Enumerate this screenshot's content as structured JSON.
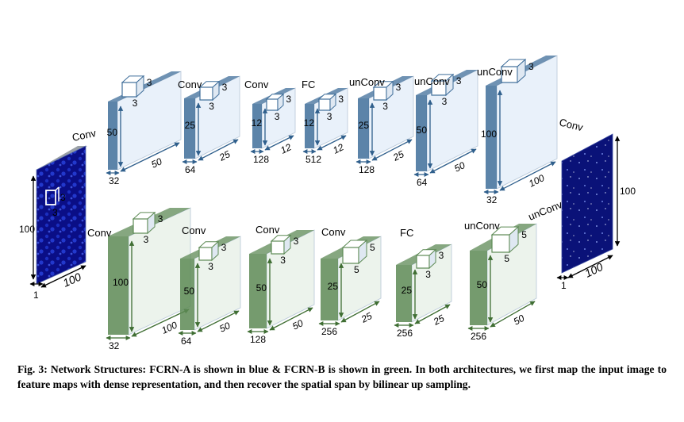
{
  "caption": "Fig. 3: Network Structures:  FCRN-A is shown in blue & FCRN-B is shown in green. In both architectures, we first map the input image to feature maps with dense representation, and then recover the spatial span by bilinear up sampling.",
  "colors": {
    "fcrn_a_face": "#e9f1fa",
    "fcrn_a_edge": "#3f6e9a",
    "fcrn_b_face": "#ecf3ec",
    "fcrn_b_edge": "#5d8a55",
    "input_image": "#0b0f8a",
    "output_image": "#0a1278"
  },
  "input": {
    "height_label": "100",
    "width_label": "100",
    "depth_label": "1",
    "kernel": [
      "3",
      "3"
    ]
  },
  "output": {
    "height_label": "100",
    "width_label": "100",
    "depth_label": "1"
  },
  "fcrn_a": [
    {
      "op": "Conv",
      "height": "50",
      "width": "50",
      "depth": "32",
      "kernel": [
        "3",
        "3"
      ]
    },
    {
      "op": "Conv",
      "height": "25",
      "width": "25",
      "depth": "64",
      "kernel": [
        "3",
        "3"
      ]
    },
    {
      "op": "Conv",
      "height": "12",
      "width": "12",
      "depth": "128",
      "kernel": [
        "3",
        "3"
      ]
    },
    {
      "op": "FC",
      "height": "12",
      "width": "12",
      "depth": "512",
      "kernel": [
        "3",
        "3"
      ]
    },
    {
      "op": "unConv",
      "height": "25",
      "width": "25",
      "depth": "128",
      "kernel": [
        "3",
        "3"
      ]
    },
    {
      "op": "unConv",
      "height": "50",
      "width": "50",
      "depth": "64",
      "kernel": [
        "3",
        "3"
      ]
    },
    {
      "op": "unConv",
      "height": "100",
      "width": "100",
      "depth": "32",
      "kernel": [
        "3"
      ]
    },
    {
      "op": "Conv"
    }
  ],
  "fcrn_b": [
    {
      "op": "Conv",
      "height": "100",
      "width": "100",
      "depth": "32",
      "kernel": [
        "3",
        "3"
      ]
    },
    {
      "op": "Conv",
      "height": "50",
      "width": "50",
      "depth": "64",
      "kernel": [
        "3",
        "3"
      ]
    },
    {
      "op": "Conv",
      "height": "50",
      "width": "50",
      "depth": "128",
      "kernel": [
        "3",
        "3"
      ]
    },
    {
      "op": "Conv",
      "height": "25",
      "width": "25",
      "depth": "256",
      "kernel": [
        "5",
        "5"
      ]
    },
    {
      "op": "FC",
      "height": "25",
      "width": "25",
      "depth": "256",
      "kernel": [
        "3",
        "3"
      ]
    },
    {
      "op": "unConv",
      "height": "50",
      "width": "50",
      "depth": "256",
      "kernel": [
        "5",
        "5"
      ]
    },
    {
      "op": "unConv"
    }
  ]
}
